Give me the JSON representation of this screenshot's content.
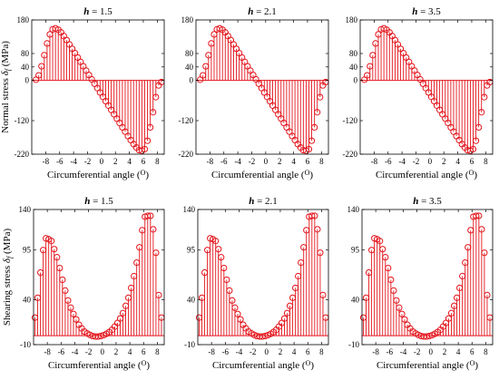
{
  "figure": {
    "grid": false
  },
  "chart_data": [
    {
      "type": "stem",
      "title_var": "h",
      "title_rest": " = 1.5",
      "xlabel": "Circumferential angle (O)",
      "ylabel": "Normal stress δf (MPa)",
      "ylabel_symbol": "δ",
      "ylabel_sub": "f",
      "ylim": [
        -220,
        180
      ],
      "yticks": [
        "180",
        "80",
        "40",
        "0",
        "-120",
        "-220"
      ],
      "xlim": [
        -10,
        9
      ],
      "xticks": [
        "-8",
        "-6",
        "-4",
        "-2",
        "0",
        "2",
        "4",
        "6",
        "8"
      ],
      "color": "#e3151c",
      "x": [
        -9.4,
        -9.0,
        -8.6,
        -8.2,
        -7.8,
        -7.4,
        -7.0,
        -6.6,
        -6.2,
        -5.8,
        -5.4,
        -5.0,
        -4.6,
        -4.2,
        -3.8,
        -3.4,
        -3.0,
        -2.6,
        -2.2,
        -1.8,
        -1.4,
        -1.0,
        -0.6,
        -0.2,
        0.2,
        0.6,
        1.0,
        1.4,
        1.8,
        2.2,
        2.6,
        3.0,
        3.4,
        3.8,
        4.2,
        4.6,
        5.0,
        5.4,
        5.8,
        6.2,
        6.6,
        7.0,
        7.4,
        7.8,
        8.2,
        8.6
      ],
      "y": [
        2,
        15,
        42,
        75,
        110,
        137,
        152,
        155,
        151,
        143,
        132,
        120,
        107,
        94,
        81,
        68,
        55,
        42,
        29,
        16,
        3,
        -10,
        -23,
        -36,
        -49,
        -62,
        -75,
        -88,
        -101,
        -114,
        -127,
        -140,
        -153,
        -166,
        -178,
        -190,
        -200,
        -208,
        -210,
        -205,
        -180,
        -140,
        -95,
        -50,
        -15,
        -5
      ]
    },
    {
      "type": "stem",
      "title_var": "h",
      "title_rest": " = 2.1",
      "xlabel": "Circumferential angle (O)",
      "ylabel": "",
      "ylim": [
        -220,
        180
      ],
      "yticks": [
        "180",
        "80",
        "40",
        "0",
        "-120",
        "-220"
      ],
      "xlim": [
        -10,
        9
      ],
      "xticks": [
        "-8",
        "-6",
        "-4",
        "-2",
        "0",
        "2",
        "4",
        "6",
        "8"
      ],
      "color": "#e3151c",
      "x": [
        -9.4,
        -9.0,
        -8.6,
        -8.2,
        -7.8,
        -7.4,
        -7.0,
        -6.6,
        -6.2,
        -5.8,
        -5.4,
        -5.0,
        -4.6,
        -4.2,
        -3.8,
        -3.4,
        -3.0,
        -2.6,
        -2.2,
        -1.8,
        -1.4,
        -1.0,
        -0.6,
        -0.2,
        0.2,
        0.6,
        1.0,
        1.4,
        1.8,
        2.2,
        2.6,
        3.0,
        3.4,
        3.8,
        4.2,
        4.6,
        5.0,
        5.4,
        5.8,
        6.2,
        6.6,
        7.0,
        7.4,
        7.8,
        8.2,
        8.6
      ],
      "y": [
        2,
        15,
        42,
        75,
        110,
        137,
        152,
        155,
        151,
        143,
        132,
        120,
        107,
        94,
        81,
        68,
        55,
        42,
        29,
        16,
        3,
        -10,
        -23,
        -36,
        -49,
        -62,
        -75,
        -88,
        -101,
        -114,
        -127,
        -140,
        -153,
        -166,
        -178,
        -190,
        -200,
        -208,
        -210,
        -205,
        -180,
        -140,
        -95,
        -50,
        -15,
        -5
      ]
    },
    {
      "type": "stem",
      "title_var": "h",
      "title_rest": " = 3.5",
      "xlabel": "Circumferential angle (O)",
      "ylabel": "",
      "ylim": [
        -220,
        180
      ],
      "yticks": [
        "180",
        "80",
        "40",
        "0",
        "-120",
        "-220"
      ],
      "xlim": [
        -10,
        9
      ],
      "xticks": [
        "-8",
        "-6",
        "-4",
        "-2",
        "0",
        "2",
        "4",
        "6",
        "8"
      ],
      "color": "#e3151c",
      "x": [
        -9.4,
        -9.0,
        -8.6,
        -8.2,
        -7.8,
        -7.4,
        -7.0,
        -6.6,
        -6.2,
        -5.8,
        -5.4,
        -5.0,
        -4.6,
        -4.2,
        -3.8,
        -3.4,
        -3.0,
        -2.6,
        -2.2,
        -1.8,
        -1.4,
        -1.0,
        -0.6,
        -0.2,
        0.2,
        0.6,
        1.0,
        1.4,
        1.8,
        2.2,
        2.6,
        3.0,
        3.4,
        3.8,
        4.2,
        4.6,
        5.0,
        5.4,
        5.8,
        6.2,
        6.6,
        7.0,
        7.4,
        7.8,
        8.2,
        8.6
      ],
      "y": [
        2,
        15,
        42,
        75,
        110,
        137,
        152,
        155,
        151,
        143,
        132,
        120,
        107,
        94,
        81,
        68,
        55,
        42,
        29,
        16,
        3,
        -10,
        -23,
        -36,
        -49,
        -62,
        -75,
        -88,
        -101,
        -114,
        -127,
        -140,
        -153,
        -166,
        -178,
        -190,
        -200,
        -208,
        -210,
        -205,
        -180,
        -140,
        -95,
        -50,
        -15,
        -5
      ]
    },
    {
      "type": "stem",
      "title_var": "h",
      "title_rest": " = 1.5",
      "xlabel": "Circumferential angle (O)",
      "ylabel": "Shearing stress δf (MPa)",
      "ylabel_symbol": "δ",
      "ylabel_sub": "f",
      "ylim": [
        -10,
        140
      ],
      "yticks": [
        "140",
        "95",
        "40",
        "-10"
      ],
      "xlim": [
        -10,
        9
      ],
      "xticks": [
        "-8",
        "-6",
        "-4",
        "-2",
        "0",
        "2",
        "4",
        "6",
        "8"
      ],
      "color": "#e3151c",
      "x": [
        -9.8,
        -9.4,
        -9.0,
        -8.6,
        -8.2,
        -7.8,
        -7.4,
        -7.0,
        -6.6,
        -6.2,
        -5.8,
        -5.4,
        -5.0,
        -4.6,
        -4.2,
        -3.8,
        -3.4,
        -3.0,
        -2.6,
        -2.2,
        -1.8,
        -1.4,
        -1.0,
        -0.6,
        -0.2,
        0.2,
        0.6,
        1.0,
        1.4,
        1.8,
        2.2,
        2.6,
        3.0,
        3.4,
        3.8,
        4.2,
        4.6,
        5.0,
        5.4,
        5.8,
        6.2,
        6.6,
        7.0,
        7.4,
        7.8,
        8.2,
        8.6
      ],
      "y": [
        20,
        42,
        70,
        95,
        108,
        107,
        105,
        96,
        87,
        75,
        62,
        50,
        39,
        31,
        24,
        18,
        12,
        8,
        4.5,
        2.5,
        0.8,
        -0.5,
        -1.0,
        -1.0,
        -0.4,
        0.5,
        2,
        4,
        6.5,
        10,
        14,
        19,
        25,
        33,
        42,
        53,
        66,
        81,
        98,
        117,
        132,
        133,
        133,
        118,
        92,
        45,
        20
      ]
    },
    {
      "type": "stem",
      "title_var": "h",
      "title_rest": " = 2.1",
      "xlabel": "Circumferential angle (O)",
      "ylabel": "",
      "ylim": [
        -10,
        140
      ],
      "yticks": [
        "140",
        "95",
        "40",
        "-10"
      ],
      "xlim": [
        -10,
        9
      ],
      "xticks": [
        "-8",
        "-6",
        "-4",
        "-2",
        "0",
        "2",
        "4",
        "6",
        "8"
      ],
      "color": "#e3151c",
      "x": [
        -9.8,
        -9.4,
        -9.0,
        -8.6,
        -8.2,
        -7.8,
        -7.4,
        -7.0,
        -6.6,
        -6.2,
        -5.8,
        -5.4,
        -5.0,
        -4.6,
        -4.2,
        -3.8,
        -3.4,
        -3.0,
        -2.6,
        -2.2,
        -1.8,
        -1.4,
        -1.0,
        -0.6,
        -0.2,
        0.2,
        0.6,
        1.0,
        1.4,
        1.8,
        2.2,
        2.6,
        3.0,
        3.4,
        3.8,
        4.2,
        4.6,
        5.0,
        5.4,
        5.8,
        6.2,
        6.6,
        7.0,
        7.4,
        7.8,
        8.2,
        8.6
      ],
      "y": [
        20,
        42,
        70,
        95,
        108,
        107,
        105,
        96,
        87,
        75,
        62,
        50,
        39,
        31,
        24,
        18,
        12,
        8,
        4.5,
        2.5,
        0.8,
        -0.5,
        -1.0,
        -1.0,
        -0.4,
        0.5,
        2,
        4,
        6.5,
        10,
        14,
        19,
        25,
        33,
        42,
        53,
        66,
        81,
        98,
        117,
        132,
        133,
        133,
        118,
        92,
        45,
        20
      ]
    },
    {
      "type": "stem",
      "title_var": "h",
      "title_rest": " = 3.5",
      "xlabel": "Circumferential angle (O)",
      "ylabel": "",
      "ylim": [
        -10,
        140
      ],
      "yticks": [
        "140",
        "95",
        "40",
        "-10"
      ],
      "xlim": [
        -10,
        9
      ],
      "xticks": [
        "-8",
        "-6",
        "-4",
        "-2",
        "0",
        "2",
        "4",
        "6",
        "8"
      ],
      "color": "#e3151c",
      "x": [
        -9.8,
        -9.4,
        -9.0,
        -8.6,
        -8.2,
        -7.8,
        -7.4,
        -7.0,
        -6.6,
        -6.2,
        -5.8,
        -5.4,
        -5.0,
        -4.6,
        -4.2,
        -3.8,
        -3.4,
        -3.0,
        -2.6,
        -2.2,
        -1.8,
        -1.4,
        -1.0,
        -0.6,
        -0.2,
        0.2,
        0.6,
        1.0,
        1.4,
        1.8,
        2.2,
        2.6,
        3.0,
        3.4,
        3.8,
        4.2,
        4.6,
        5.0,
        5.4,
        5.8,
        6.2,
        6.6,
        7.0,
        7.4,
        7.8,
        8.2,
        8.6
      ],
      "y": [
        20,
        42,
        70,
        95,
        108,
        107,
        105,
        96,
        87,
        75,
        62,
        50,
        39,
        31,
        24,
        18,
        12,
        8,
        4.5,
        2.5,
        0.8,
        -0.5,
        -1.0,
        -1.0,
        -0.4,
        0.5,
        2,
        4,
        6.5,
        10,
        14,
        19,
        25,
        33,
        42,
        53,
        66,
        81,
        98,
        117,
        132,
        133,
        133,
        118,
        92,
        45,
        20
      ]
    }
  ]
}
